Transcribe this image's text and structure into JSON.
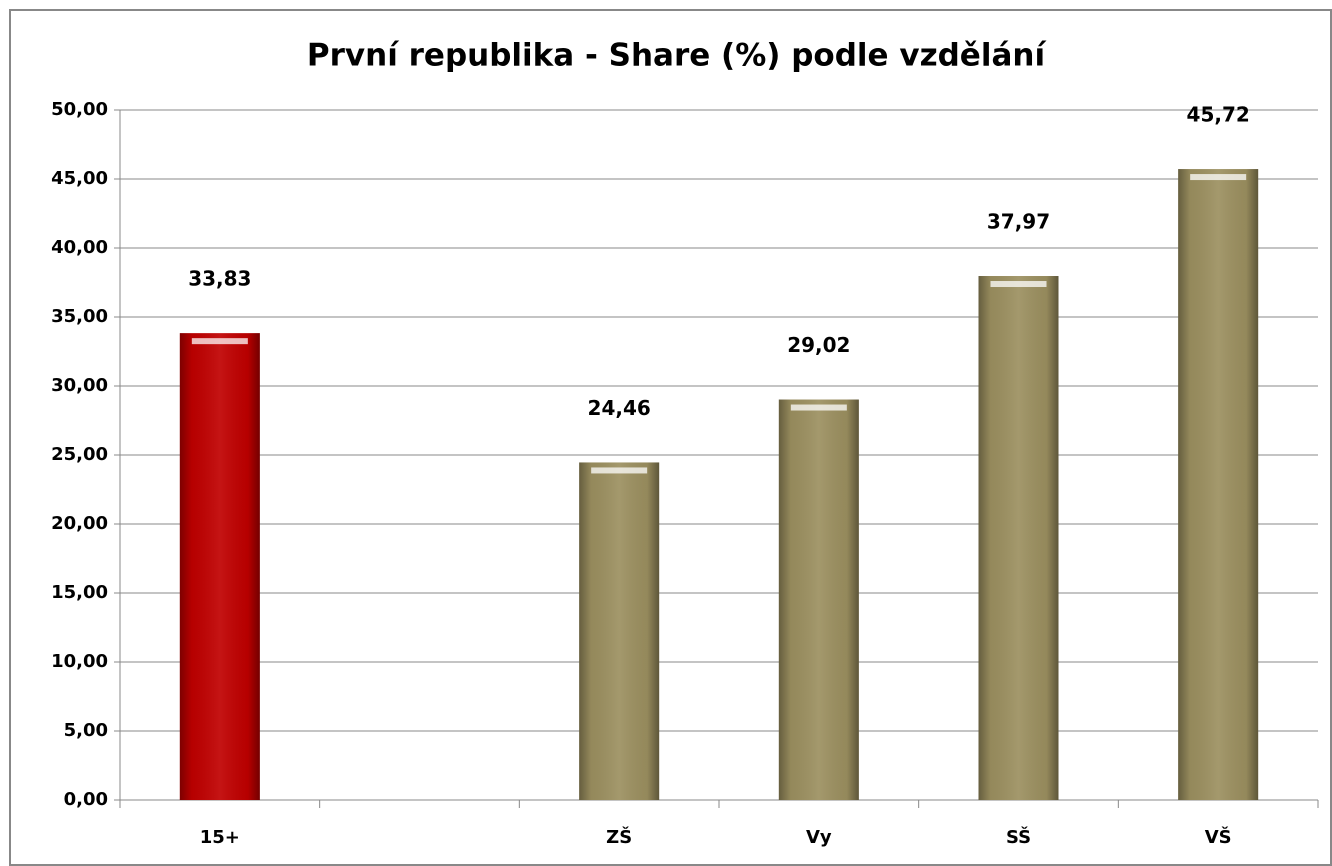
{
  "chart_data": {
    "type": "bar",
    "title": "První republika - Share (%) podle vzdělání",
    "categories": [
      "15+",
      null,
      "ZŠ",
      "Vy",
      "SŠ",
      "VŠ"
    ],
    "values": [
      33.83,
      null,
      24.46,
      29.02,
      37.97,
      45.72
    ],
    "value_labels": [
      "33,83",
      null,
      "24,46",
      "29,02",
      "37,97",
      "45,72"
    ],
    "colors": [
      "#c00000",
      null,
      "#9c9060",
      "#9c9060",
      "#9c9060",
      "#9c9060"
    ],
    "ylim": [
      0,
      50
    ],
    "yticks": [
      {
        "value": 0,
        "label": "0,00"
      },
      {
        "value": 5,
        "label": "5,00"
      },
      {
        "value": 10,
        "label": "10,00"
      },
      {
        "value": 15,
        "label": "15,00"
      },
      {
        "value": 20,
        "label": "20,00"
      },
      {
        "value": 25,
        "label": "25,00"
      },
      {
        "value": 30,
        "label": "30,00"
      },
      {
        "value": 35,
        "label": "35,00"
      },
      {
        "value": 40,
        "label": "40,00"
      },
      {
        "value": 45,
        "label": "45,00"
      },
      {
        "value": 50,
        "label": "50,00"
      }
    ],
    "grid": true
  }
}
